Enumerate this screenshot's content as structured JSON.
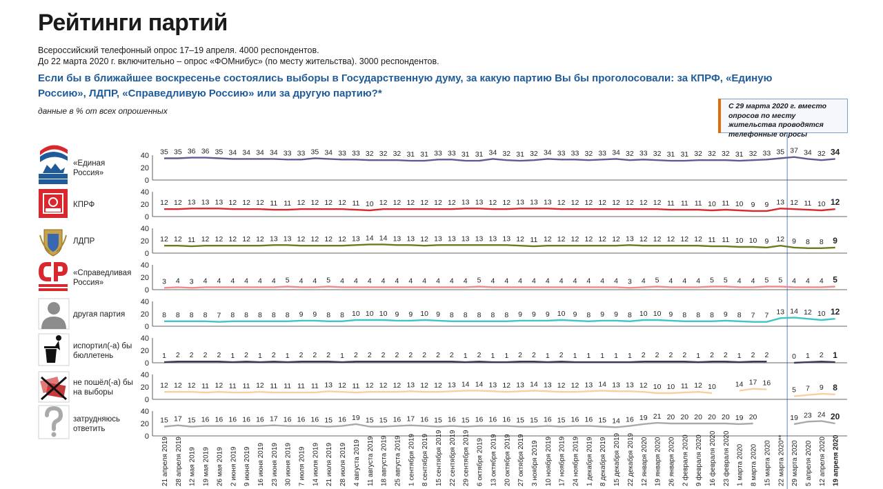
{
  "header": {
    "title": "Рейтинги партий",
    "subtitle1": "Всероссийский телефонный опрос 17–19 апреля. 4000 респондентов.",
    "subtitle2": "До 22 марта 2020 г. включительно – опрос «ФОМнибус» (по месту жительства). 3000 респондентов.",
    "question": "Если бы в ближайшее воскресенье состоялись выборы в Государственную думу, за какую партию Вы бы проголосовали: за КПРФ, «Единую Россию», ЛДПР, «Справедливую Россию» или за другую партию?*",
    "units": "данные в % от всех опрошенных",
    "note": "С 29 марта 2020 г. вместо опросов по месту жительства проводятся телефонные опросы"
  },
  "colors": {
    "question": "#1f5b98",
    "marker_line": "#7f9fcf",
    "note_bar": "#e36c0a",
    "series": [
      "#5f5a92",
      "#d9272e",
      "#6b7a1f",
      "#f08a8a",
      "#3fc4c8",
      "#3c3a5c",
      "#f9cf9f",
      "#a9a9a9"
    ]
  },
  "icons": [
    "united-russia-logo",
    "kprf-logo",
    "ldpr-logo",
    "sr-logo",
    "person-silhouette-icon",
    "trash-bin-icon",
    "crossed-ballot-icon",
    "question-mark-icon"
  ],
  "chart_data": {
    "type": "line",
    "ylim": [
      0,
      40
    ],
    "yticks": [
      0,
      20,
      40
    ],
    "x": [
      "21 апреля 2019",
      "28 апреля 2019",
      "12 мая 2019",
      "19 мая 2019",
      "26 мая 2019",
      "2 июня 2019",
      "9 июня 2019",
      "16 июня 2019",
      "23 июня 2019",
      "30 июня 2019",
      "7 июля 2019",
      "14 июля 2019",
      "21 июля 2019",
      "28 июля 2019",
      "4 августа 2019",
      "11 августа 2019",
      "18 августа 2019",
      "25 августа 2019",
      "1 сентября 2019",
      "8 сентября 2019",
      "15 сентября 2019",
      "22 сентября 2019",
      "29 сентября 2019",
      "6 октября 2019",
      "13 октября 2019",
      "20 октября 2019",
      "27 октября 2019",
      "3 ноября 2019",
      "10 ноября 2019",
      "17 ноября 2019",
      "24 ноября 2019",
      "1 декабря 2019",
      "8 декабря 2019",
      "15 декабря 2019",
      "22 декабря 2019",
      "12 января 2020",
      "19 января 2020",
      "26 января 2020",
      "2 февраля 2020",
      "9 февраля 2020",
      "16 февраля 2020",
      "23 февраля 2020",
      "1 марта 2020",
      "8 марта 2020",
      "15 марта 2020",
      "22 марта 2020**",
      "29 марта 2020",
      "5 апреля 2020",
      "12 апреля 2020",
      "19 апреля 2020"
    ],
    "gap_after_index": 45,
    "series": [
      {
        "name": "«Единая Россия»",
        "values": [
          35,
          35,
          36,
          36,
          35,
          34,
          34,
          34,
          34,
          33,
          33,
          35,
          34,
          33,
          33,
          32,
          32,
          32,
          31,
          31,
          33,
          33,
          31,
          31,
          34,
          32,
          31,
          32,
          34,
          33,
          33,
          32,
          33,
          34,
          32,
          33,
          32,
          31,
          31,
          32,
          32,
          32,
          31,
          32,
          33,
          35,
          37,
          34,
          32,
          34
        ]
      },
      {
        "name": "КПРФ",
        "values": [
          12,
          12,
          13,
          13,
          13,
          12,
          12,
          12,
          11,
          11,
          12,
          12,
          12,
          12,
          11,
          10,
          12,
          12,
          12,
          12,
          12,
          12,
          13,
          13,
          12,
          12,
          13,
          13,
          13,
          12,
          12,
          12,
          12,
          12,
          12,
          12,
          12,
          11,
          11,
          11,
          10,
          11,
          10,
          9,
          9,
          13,
          12,
          11,
          10,
          12
        ]
      },
      {
        "name": "ЛДПР",
        "values": [
          12,
          12,
          11,
          12,
          12,
          12,
          12,
          12,
          13,
          13,
          12,
          12,
          12,
          12,
          13,
          14,
          14,
          13,
          13,
          12,
          13,
          13,
          13,
          13,
          13,
          13,
          12,
          11,
          12,
          12,
          12,
          12,
          12,
          12,
          13,
          12,
          12,
          12,
          12,
          12,
          11,
          11,
          10,
          10,
          9,
          12,
          9,
          8,
          8,
          9
        ]
      },
      {
        "name": "«Справедливая Россия»",
        "values": [
          3,
          4,
          3,
          4,
          4,
          4,
          4,
          4,
          4,
          5,
          4,
          4,
          5,
          4,
          4,
          4,
          4,
          4,
          4,
          4,
          4,
          4,
          4,
          5,
          4,
          4,
          4,
          4,
          4,
          4,
          4,
          4,
          4,
          4,
          3,
          4,
          5,
          4,
          4,
          4,
          5,
          5,
          4,
          4,
          5,
          5,
          4,
          4,
          4,
          5
        ]
      },
      {
        "name": "другая партия",
        "values": [
          8,
          8,
          8,
          8,
          7,
          8,
          8,
          8,
          8,
          8,
          9,
          9,
          8,
          8,
          10,
          10,
          10,
          9,
          9,
          10,
          9,
          8,
          8,
          8,
          8,
          8,
          9,
          9,
          9,
          10,
          9,
          8,
          9,
          9,
          8,
          10,
          10,
          9,
          8,
          8,
          8,
          9,
          8,
          7,
          7,
          13,
          14,
          12,
          10,
          12
        ]
      },
      {
        "name": "испортил(-а) бы бюллетень",
        "values": [
          1,
          2,
          2,
          2,
          2,
          1,
          2,
          1,
          2,
          1,
          2,
          2,
          2,
          1,
          2,
          2,
          2,
          2,
          2,
          2,
          2,
          2,
          1,
          2,
          1,
          1,
          2,
          2,
          1,
          2,
          1,
          1,
          1,
          1,
          1,
          2,
          2,
          2,
          2,
          1,
          2,
          2,
          1,
          2,
          2,
          null,
          0,
          1,
          2,
          1
        ]
      },
      {
        "name": "не пошёл(-а) бы на выборы",
        "values": [
          12,
          12,
          12,
          11,
          12,
          11,
          11,
          12,
          11,
          11,
          11,
          11,
          13,
          12,
          11,
          12,
          12,
          12,
          13,
          12,
          12,
          13,
          14,
          14,
          13,
          12,
          13,
          14,
          13,
          12,
          12,
          13,
          14,
          13,
          13,
          12,
          10,
          10,
          11,
          12,
          10,
          null,
          14,
          17,
          16,
          null,
          5,
          7,
          9,
          8
        ]
      },
      {
        "name": "затрудняюсь ответить",
        "values": [
          15,
          17,
          15,
          16,
          16,
          16,
          16,
          16,
          17,
          16,
          16,
          16,
          15,
          16,
          19,
          15,
          15,
          16,
          17,
          16,
          15,
          16,
          15,
          16,
          16,
          16,
          15,
          15,
          16,
          15,
          16,
          16,
          15,
          14,
          16,
          19,
          21,
          20,
          20,
          20,
          20,
          20,
          19,
          20,
          null,
          null,
          19,
          23,
          24,
          20
        ]
      }
    ],
    "row_labels": [
      [
        "«Единая",
        "Россия»"
      ],
      [
        "КПРФ"
      ],
      [
        "ЛДПР"
      ],
      [
        "«Справедливая",
        "Россия»"
      ],
      [
        "другая партия"
      ],
      [
        "испортил(-а) бы",
        "бюллетень"
      ],
      [
        "не пошёл(-а) бы",
        "на выборы"
      ],
      [
        "затрудняюсь",
        "ответить"
      ]
    ]
  }
}
